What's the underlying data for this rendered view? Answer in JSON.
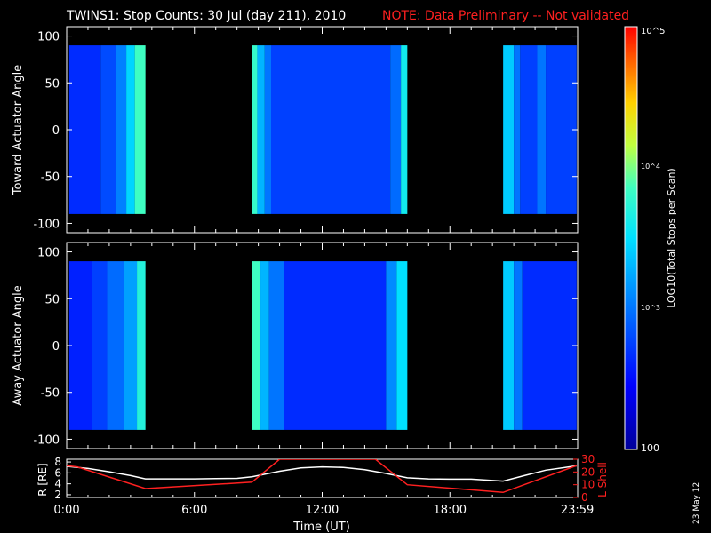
{
  "title": "TWINS1: Stop Counts: 30 Jul (day 211), 2010",
  "note": "NOTE: Data Preliminary -- Not validated",
  "footer_date": "23 May 12",
  "colors": {
    "background": "#000000",
    "foreground": "#ffffff",
    "note": "#ff2020",
    "r_line": "#ffffff",
    "l_shell_line": "#ff2020"
  },
  "chart_data": [
    {
      "type": "heatmap",
      "ylabel": "Toward Actuator Angle",
      "ylim": [
        -110,
        110
      ],
      "yticks": [
        -100,
        -50,
        0,
        50,
        100
      ],
      "ytick_labels": [
        "-100",
        "-50",
        "0",
        "50",
        "100"
      ],
      "data_angle_range": [
        -90,
        90
      ],
      "xlim_hours": [
        0,
        24
      ],
      "data_intervals_hours": [
        [
          0.12,
          3.7
        ],
        [
          8.7,
          16.0
        ],
        [
          20.5,
          23.95
        ]
      ],
      "column_levels": [
        {
          "t": [
            0.12,
            1.6
          ],
          "level": 2.65
        },
        {
          "t": [
            1.6,
            2.3
          ],
          "level": 2.8
        },
        {
          "t": [
            2.3,
            2.8
          ],
          "level": 3.05
        },
        {
          "t": [
            2.8,
            3.2
          ],
          "level": 3.45
        },
        {
          "t": [
            3.2,
            3.7
          ],
          "level": 3.85
        },
        {
          "t": [
            8.7,
            8.95
          ],
          "level": 3.8
        },
        {
          "t": [
            8.95,
            9.3
          ],
          "level": 3.3
        },
        {
          "t": [
            9.3,
            9.6
          ],
          "level": 3.0
        },
        {
          "t": [
            9.6,
            15.2
          ],
          "level": 2.75
        },
        {
          "t": [
            15.2,
            15.7
          ],
          "level": 2.95
        },
        {
          "t": [
            15.7,
            16.0
          ],
          "level": 3.6
        },
        {
          "t": [
            20.5,
            21.0
          ],
          "level": 3.4
        },
        {
          "t": [
            21.0,
            21.3
          ],
          "level": 3.0
        },
        {
          "t": [
            21.3,
            22.1
          ],
          "level": 2.75
        },
        {
          "t": [
            22.1,
            22.5
          ],
          "level": 3.0
        },
        {
          "t": [
            22.5,
            23.95
          ],
          "level": 2.75
        }
      ]
    },
    {
      "type": "heatmap",
      "ylabel": "Away Actuator Angle",
      "ylim": [
        -110,
        110
      ],
      "yticks": [
        -100,
        -50,
        0,
        50,
        100
      ],
      "ytick_labels": [
        "-100",
        "-50",
        "0",
        "50",
        "100"
      ],
      "data_angle_range": [
        -90,
        90
      ],
      "xlim_hours": [
        0,
        24
      ],
      "data_intervals_hours": [
        [
          0.12,
          3.7
        ],
        [
          8.7,
          16.0
        ],
        [
          20.5,
          23.95
        ]
      ],
      "column_levels": [
        {
          "t": [
            0.12,
            1.2
          ],
          "level": 2.6
        },
        {
          "t": [
            1.2,
            1.9
          ],
          "level": 2.75
        },
        {
          "t": [
            1.9,
            2.7
          ],
          "level": 2.95
        },
        {
          "t": [
            2.7,
            3.3
          ],
          "level": 3.2
        },
        {
          "t": [
            3.3,
            3.7
          ],
          "level": 3.7
        },
        {
          "t": [
            8.7,
            9.1
          ],
          "level": 3.85
        },
        {
          "t": [
            9.1,
            9.5
          ],
          "level": 3.3
        },
        {
          "t": [
            9.5,
            10.2
          ],
          "level": 3.0
        },
        {
          "t": [
            10.2,
            15.0
          ],
          "level": 2.65
        },
        {
          "t": [
            15.0,
            15.5
          ],
          "level": 3.1
        },
        {
          "t": [
            15.5,
            16.0
          ],
          "level": 3.5
        },
        {
          "t": [
            20.5,
            21.0
          ],
          "level": 3.4
        },
        {
          "t": [
            21.0,
            21.4
          ],
          "level": 3.0
        },
        {
          "t": [
            21.4,
            23.95
          ],
          "level": 2.65
        }
      ]
    },
    {
      "type": "line",
      "ylabel": "R [RE]",
      "y2label": "L Shell",
      "xlabel": "Time (UT)",
      "xlim_hours": [
        0,
        24
      ],
      "ylim": [
        1.5,
        8.5
      ],
      "yticks": [
        2,
        4,
        6,
        8
      ],
      "ytick_labels": [
        "2",
        "4",
        "6",
        "8"
      ],
      "y2lim": [
        0,
        30
      ],
      "y2ticks": [
        0,
        10,
        20,
        30
      ],
      "y2tick_labels": [
        "0",
        "10",
        "20",
        "30"
      ],
      "xticks_hours": [
        0,
        6,
        12,
        18,
        23.983
      ],
      "xtick_labels": [
        "0:00",
        "6:00",
        "12:00",
        "18:00",
        "23:59"
      ],
      "series": [
        {
          "x": [
            0.0,
            1.0,
            2.0,
            3.0,
            3.7,
            5.0,
            6.0,
            7.0,
            8.0,
            8.7,
            10.0,
            11.0,
            12.0,
            13.0,
            14.0,
            15.0,
            16.0,
            17.0,
            18.0,
            19.0,
            20.5,
            21.5,
            22.5,
            23.95
          ],
          "y": [
            7.2,
            6.8,
            6.2,
            5.5,
            4.9,
            4.9,
            4.9,
            4.95,
            5.0,
            5.3,
            6.3,
            6.9,
            7.1,
            7.0,
            6.6,
            5.9,
            5.1,
            4.9,
            4.85,
            4.85,
            4.5,
            5.5,
            6.5,
            7.3
          ],
          "axis": "left"
        },
        {
          "x": [
            0.0,
            0.5,
            3.7,
            8.7,
            10.0,
            14.5,
            16.0,
            20.5,
            23.95
          ],
          "y": [
            25,
            24,
            7,
            12,
            30,
            30,
            10,
            4,
            25
          ],
          "axis": "right"
        }
      ]
    }
  ],
  "colorbar": {
    "label": "LOG10(Total Stops per Scan)",
    "min_label": "100",
    "mid_label": "10^3",
    "upper_label": "10^4",
    "max_label": "10^5",
    "range_log": [
      2,
      5
    ]
  }
}
